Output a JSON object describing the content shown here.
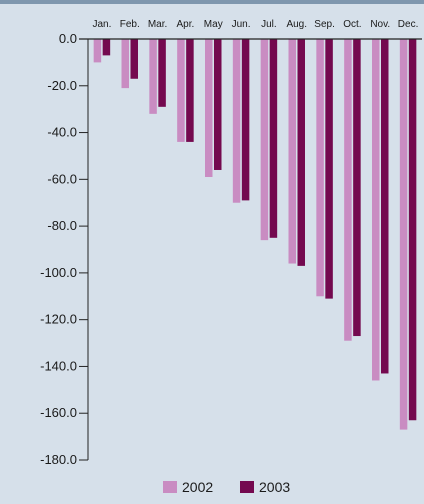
{
  "chart_data": {
    "type": "bar",
    "categories": [
      "Jan.",
      "Feb.",
      "Mar.",
      "Apr.",
      "May",
      "Jun.",
      "Jul.",
      "Aug.",
      "Sep.",
      "Oct.",
      "Nov.",
      "Dec."
    ],
    "series": [
      {
        "name": "2002",
        "values": [
          -10,
          -21,
          -32,
          -44,
          -59,
          -70,
          -86,
          -96,
          -110,
          -129,
          -146,
          -167
        ],
        "color": "#c98cc2"
      },
      {
        "name": "2003",
        "values": [
          -7,
          -17,
          -29,
          -44,
          -56,
          -69,
          -85,
          -97,
          -111,
          -127,
          -143,
          -163
        ],
        "color": "#74094f"
      }
    ],
    "title": "",
    "xlabel": "",
    "ylabel": "",
    "ylim": [
      -180,
      0
    ],
    "yticks": [
      0,
      -20,
      -40,
      -60,
      -80,
      -100,
      -120,
      -140,
      -160,
      -180
    ],
    "ytick_labels": [
      "0.0",
      "-20.0",
      "-40.0",
      "-60.0",
      "-80.0",
      "-100.0",
      "-120.0",
      "-140.0",
      "-160.0",
      "-180.0"
    ],
    "x_axis_position": "top",
    "grid": false,
    "legend_position": "bottom-center"
  }
}
